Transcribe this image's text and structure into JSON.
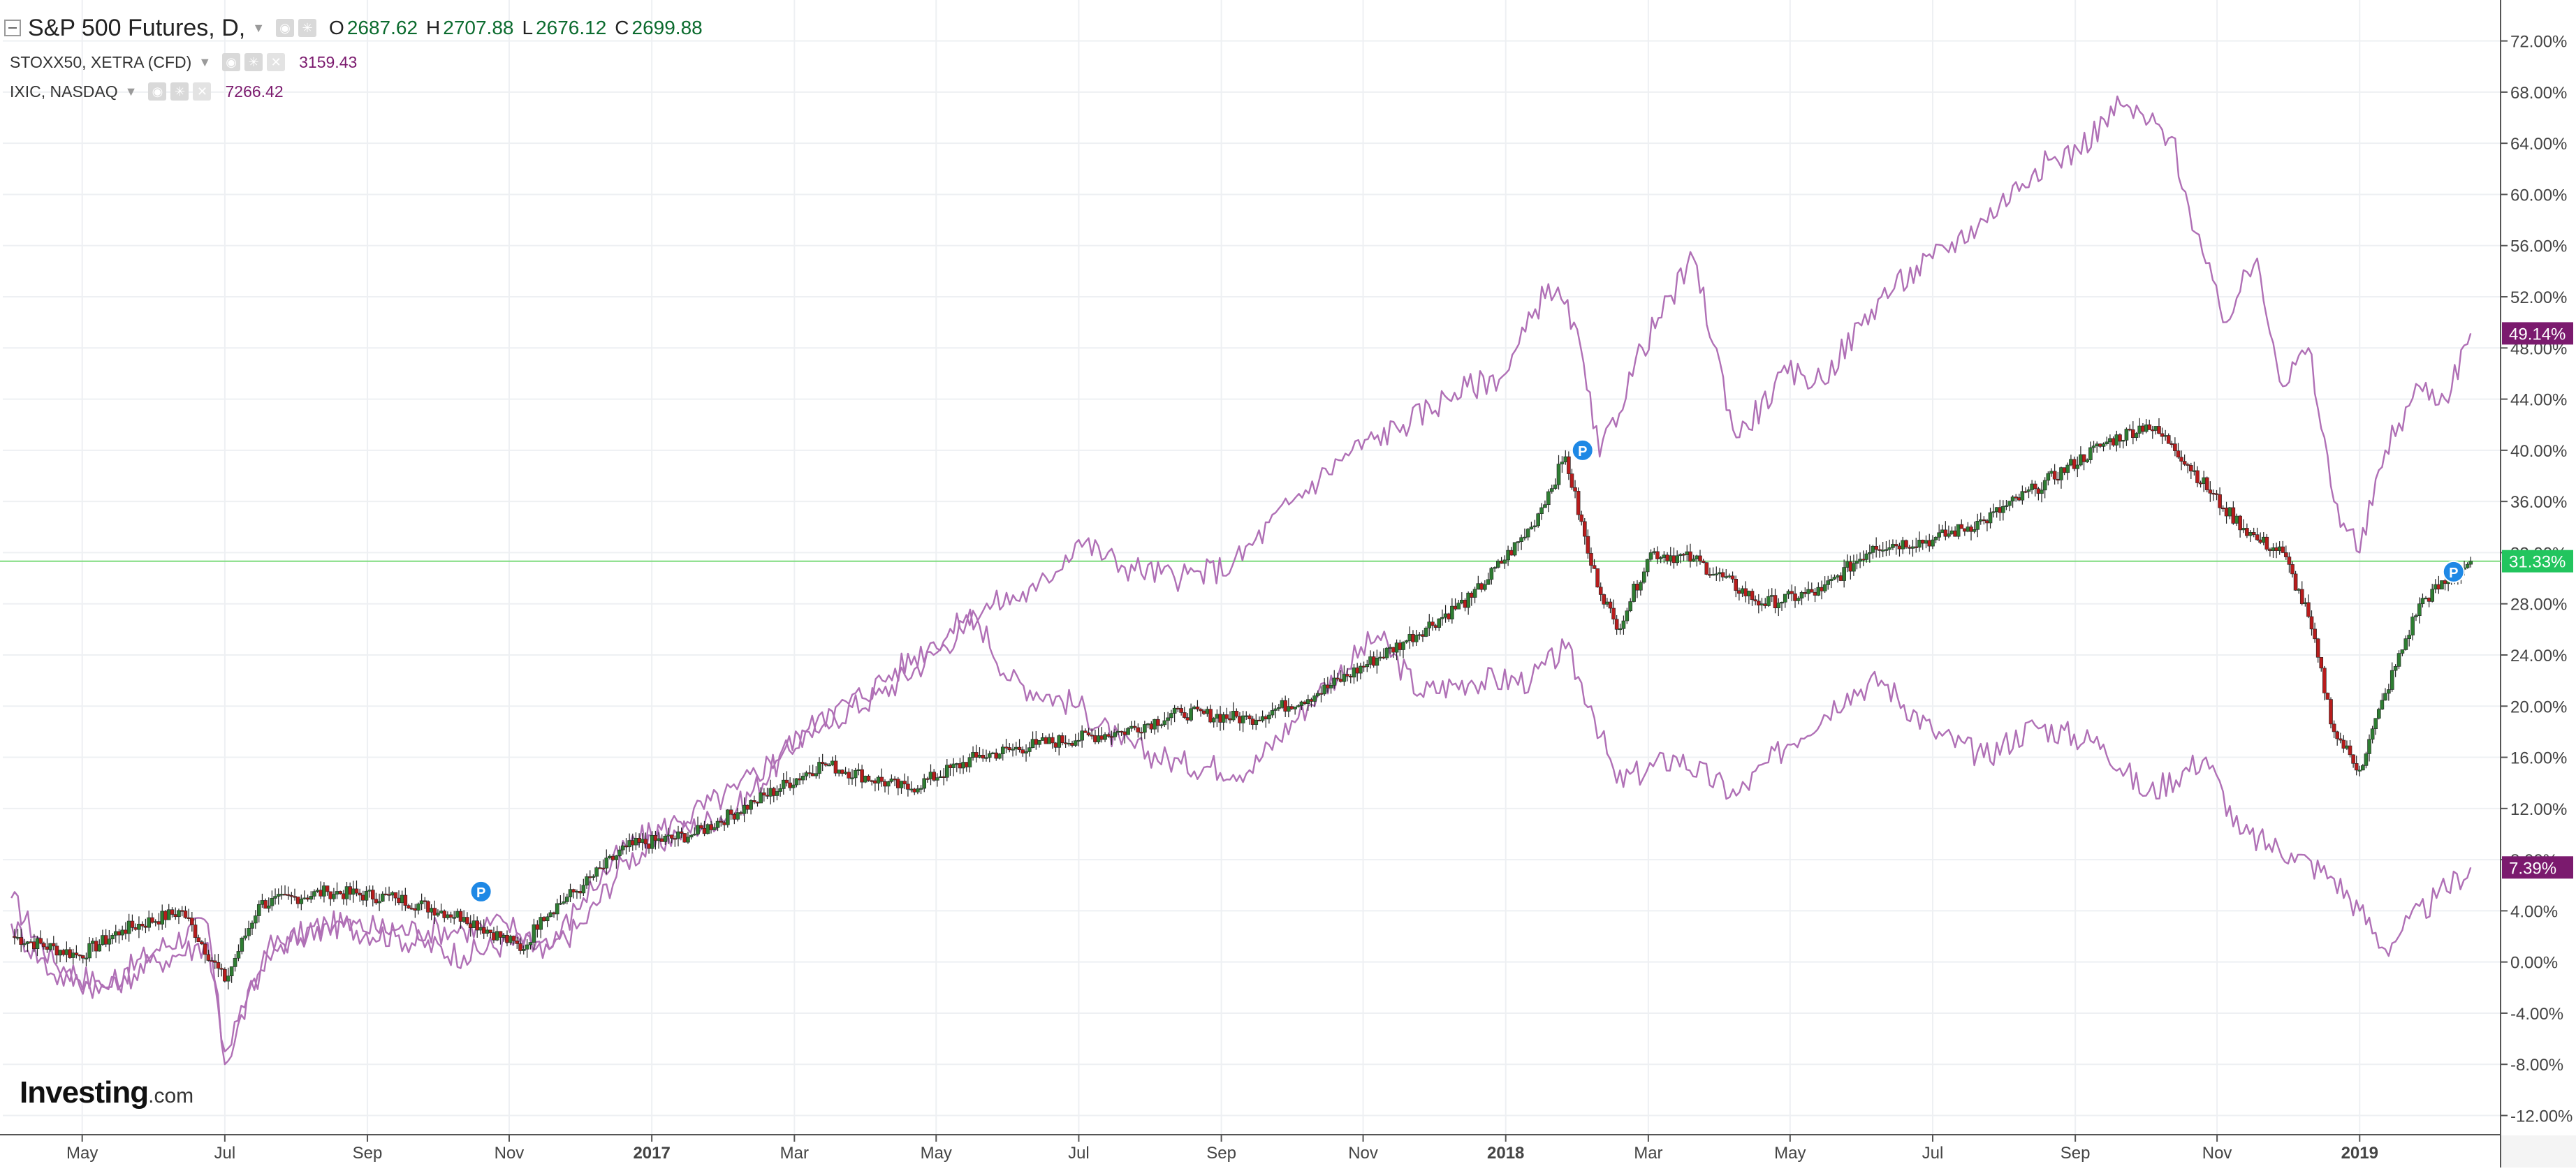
{
  "chart_data": {
    "type": "line",
    "title": "S&P 500 Futures, D,",
    "main_series": {
      "name": "S&P 500 Futures, D,",
      "style": "candlestick",
      "ohlc": {
        "o_label": "O",
        "o": "2687.62",
        "h_label": "H",
        "h": "2707.88",
        "l_label": "L",
        "l": "2676.12",
        "c_label": "C",
        "c": "2699.88"
      },
      "last_label": "31.33%",
      "color": "#2e7d32",
      "down_color": "#b71c1c",
      "values": [
        [
          2016.25,
          2.0
        ],
        [
          2016.33,
          0.5
        ],
        [
          2016.38,
          2.5
        ],
        [
          2016.45,
          4.0
        ],
        [
          2016.5,
          -1.5
        ],
        [
          2016.54,
          4.5
        ],
        [
          2016.62,
          5.5
        ],
        [
          2016.7,
          5.0
        ],
        [
          2016.78,
          3.5
        ],
        [
          2016.85,
          1.0
        ],
        [
          2016.87,
          3.5
        ],
        [
          2016.92,
          6.0
        ],
        [
          2016.97,
          9.0
        ],
        [
          2017.05,
          10.0
        ],
        [
          2017.12,
          12.5
        ],
        [
          2017.2,
          15.5
        ],
        [
          2017.3,
          13.5
        ],
        [
          2017.38,
          16.0
        ],
        [
          2017.45,
          17.0
        ],
        [
          2017.55,
          18.0
        ],
        [
          2017.62,
          19.5
        ],
        [
          2017.7,
          19.0
        ],
        [
          2017.78,
          21.0
        ],
        [
          2017.88,
          25.0
        ],
        [
          2017.96,
          28.5
        ],
        [
          2018.03,
          34.0
        ],
        [
          2018.07,
          39.5
        ],
        [
          2018.1,
          31.0
        ],
        [
          2018.13,
          26.0
        ],
        [
          2018.17,
          32.0
        ],
        [
          2018.22,
          31.5
        ],
        [
          2018.3,
          28.0
        ],
        [
          2018.37,
          29.0
        ],
        [
          2018.43,
          32.5
        ],
        [
          2018.5,
          33.0
        ],
        [
          2018.56,
          34.5
        ],
        [
          2018.62,
          37.0
        ],
        [
          2018.7,
          40.5
        ],
        [
          2018.75,
          42.0
        ],
        [
          2018.78,
          40.5
        ],
        [
          2018.84,
          35.5
        ],
        [
          2018.88,
          33.0
        ],
        [
          2018.91,
          32.0
        ],
        [
          2018.94,
          27.0
        ],
        [
          2018.97,
          18.0
        ],
        [
          2019.0,
          15.0
        ],
        [
          2019.03,
          21.0
        ],
        [
          2019.07,
          28.0
        ],
        [
          2019.13,
          31.33
        ]
      ]
    },
    "series": [
      {
        "name": "STOXX50, XETRA (CFD)",
        "value": "3159.43",
        "last_label": "7.39%",
        "color": "#b070b6",
        "label_color": "#7b1a6e",
        "values": [
          [
            2016.25,
            5.0
          ],
          [
            2016.3,
            0.0
          ],
          [
            2016.36,
            -2.0
          ],
          [
            2016.42,
            1.0
          ],
          [
            2016.48,
            3.0
          ],
          [
            2016.5,
            -8.0
          ],
          [
            2016.55,
            1.0
          ],
          [
            2016.62,
            3.0
          ],
          [
            2016.7,
            2.0
          ],
          [
            2016.78,
            0.5
          ],
          [
            2016.83,
            1.5
          ],
          [
            2016.88,
            1.0
          ],
          [
            2016.92,
            3.0
          ],
          [
            2016.97,
            8.0
          ],
          [
            2017.03,
            10.0
          ],
          [
            2017.1,
            12.0
          ],
          [
            2017.18,
            18.0
          ],
          [
            2017.27,
            21.0
          ],
          [
            2017.33,
            24.0
          ],
          [
            2017.38,
            27.0
          ],
          [
            2017.42,
            22.0
          ],
          [
            2017.5,
            20.0
          ],
          [
            2017.55,
            17.0
          ],
          [
            2017.62,
            15.5
          ],
          [
            2017.7,
            15.0
          ],
          [
            2017.78,
            21.0
          ],
          [
            2017.85,
            25.5
          ],
          [
            2017.9,
            21.0
          ],
          [
            2017.96,
            22.0
          ],
          [
            2018.03,
            22.0
          ],
          [
            2018.07,
            24.5
          ],
          [
            2018.1,
            20.0
          ],
          [
            2018.13,
            14.0
          ],
          [
            2018.2,
            16.0
          ],
          [
            2018.27,
            13.0
          ],
          [
            2018.33,
            17.0
          ],
          [
            2018.4,
            21.0
          ],
          [
            2018.44,
            22.0
          ],
          [
            2018.5,
            18.0
          ],
          [
            2018.56,
            16.0
          ],
          [
            2018.62,
            18.5
          ],
          [
            2018.7,
            17.0
          ],
          [
            2018.75,
            13.0
          ],
          [
            2018.82,
            16.0
          ],
          [
            2018.86,
            10.0
          ],
          [
            2018.92,
            8.5
          ],
          [
            2018.97,
            6.5
          ],
          [
            2019.0,
            4.0
          ],
          [
            2019.03,
            1.0
          ],
          [
            2019.05,
            2.5
          ],
          [
            2019.09,
            5.0
          ],
          [
            2019.13,
            7.39
          ]
        ]
      },
      {
        "name": "IXIC, NASDAQ",
        "value": "7266.42",
        "last_label": "49.14%",
        "color": "#b070b6",
        "label_color": "#7b1a6e",
        "values": [
          [
            2016.25,
            3.0
          ],
          [
            2016.3,
            -1.0
          ],
          [
            2016.36,
            -2.0
          ],
          [
            2016.42,
            0.0
          ],
          [
            2016.48,
            1.5
          ],
          [
            2016.5,
            -7.0
          ],
          [
            2016.55,
            0.5
          ],
          [
            2016.62,
            3.0
          ],
          [
            2016.7,
            2.5
          ],
          [
            2016.78,
            2.5
          ],
          [
            2016.83,
            3.0
          ],
          [
            2016.88,
            1.0
          ],
          [
            2016.92,
            5.0
          ],
          [
            2016.97,
            9.0
          ],
          [
            2017.03,
            11.0
          ],
          [
            2017.1,
            13.5
          ],
          [
            2017.18,
            18.0
          ],
          [
            2017.27,
            22.0
          ],
          [
            2017.33,
            25.0
          ],
          [
            2017.4,
            28.0
          ],
          [
            2017.45,
            29.0
          ],
          [
            2017.5,
            33.0
          ],
          [
            2017.55,
            31.0
          ],
          [
            2017.62,
            30.0
          ],
          [
            2017.68,
            31.0
          ],
          [
            2017.75,
            36.0
          ],
          [
            2017.82,
            40.0
          ],
          [
            2017.88,
            42.0
          ],
          [
            2017.94,
            44.5
          ],
          [
            2018.0,
            46.0
          ],
          [
            2018.05,
            53.0
          ],
          [
            2018.08,
            50.0
          ],
          [
            2018.11,
            39.5
          ],
          [
            2018.16,
            48.0
          ],
          [
            2018.22,
            55.0
          ],
          [
            2018.27,
            41.0
          ],
          [
            2018.33,
            46.0
          ],
          [
            2018.37,
            45.5
          ],
          [
            2018.44,
            52.0
          ],
          [
            2018.5,
            55.0
          ],
          [
            2018.56,
            58.0
          ],
          [
            2018.62,
            62.0
          ],
          [
            2018.67,
            63.5
          ],
          [
            2018.72,
            67.0
          ],
          [
            2018.78,
            64.5
          ],
          [
            2018.8,
            59.0
          ],
          [
            2018.84,
            50.0
          ],
          [
            2018.88,
            55.0
          ],
          [
            2018.91,
            45.0
          ],
          [
            2018.94,
            48.0
          ],
          [
            2018.97,
            36.0
          ],
          [
            2019.0,
            32.0
          ],
          [
            2019.03,
            40.0
          ],
          [
            2019.07,
            45.0
          ],
          [
            2019.1,
            44.0
          ],
          [
            2019.13,
            49.14
          ]
        ]
      }
    ],
    "markers": [
      {
        "label": "P",
        "x": 2016.8,
        "y": 5.5
      },
      {
        "label": "P",
        "x": 2018.09,
        "y": 40.0
      },
      {
        "label": "P",
        "x": 2019.11,
        "y": 30.5
      }
    ],
    "xlim": [
      2016.24,
      2019.165
    ],
    "ylim": [
      -13.5,
      75.2
    ],
    "x_ticks": [
      {
        "value": 2016.333,
        "label": "May",
        "bold": false
      },
      {
        "value": 2016.5,
        "label": "Jul",
        "bold": false
      },
      {
        "value": 2016.667,
        "label": "Sep",
        "bold": false
      },
      {
        "value": 2016.833,
        "label": "Nov",
        "bold": false
      },
      {
        "value": 2017.0,
        "label": "2017",
        "bold": true
      },
      {
        "value": 2017.167,
        "label": "Mar",
        "bold": false
      },
      {
        "value": 2017.333,
        "label": "May",
        "bold": false
      },
      {
        "value": 2017.5,
        "label": "Jul",
        "bold": false
      },
      {
        "value": 2017.667,
        "label": "Sep",
        "bold": false
      },
      {
        "value": 2017.833,
        "label": "Nov",
        "bold": false
      },
      {
        "value": 2018.0,
        "label": "2018",
        "bold": true
      },
      {
        "value": 2018.167,
        "label": "Mar",
        "bold": false
      },
      {
        "value": 2018.333,
        "label": "May",
        "bold": false
      },
      {
        "value": 2018.5,
        "label": "Jul",
        "bold": false
      },
      {
        "value": 2018.667,
        "label": "Sep",
        "bold": false
      },
      {
        "value": 2018.833,
        "label": "Nov",
        "bold": false
      },
      {
        "value": 2019.0,
        "label": "2019",
        "bold": true
      }
    ],
    "y_ticks": [
      {
        "value": -12,
        "label": "-12.00%"
      },
      {
        "value": -8,
        "label": "-8.00%"
      },
      {
        "value": -4,
        "label": "-4.00%"
      },
      {
        "value": 0,
        "label": "0.00%"
      },
      {
        "value": 4,
        "label": "4.00%"
      },
      {
        "value": 8,
        "label": "8.00%"
      },
      {
        "value": 12,
        "label": "12.00%"
      },
      {
        "value": 16,
        "label": "16.00%"
      },
      {
        "value": 20,
        "label": "20.00%"
      },
      {
        "value": 24,
        "label": "24.00%"
      },
      {
        "value": 28,
        "label": "28.00%"
      },
      {
        "value": 32,
        "label": "32.00%"
      },
      {
        "value": 36,
        "label": "36.00%"
      },
      {
        "value": 40,
        "label": "40.00%"
      },
      {
        "value": 44,
        "label": "44.00%"
      },
      {
        "value": 48,
        "label": "48.00%"
      },
      {
        "value": 52,
        "label": "52.00%"
      },
      {
        "value": 56,
        "label": "56.00%"
      },
      {
        "value": 60,
        "label": "60.00%"
      },
      {
        "value": 64,
        "label": "64.00%"
      },
      {
        "value": 68,
        "label": "68.00%"
      },
      {
        "value": 72,
        "label": "72.00%"
      }
    ],
    "grid": true,
    "y_axis_position": "right",
    "horizontal_line": {
      "value": 31.33,
      "color": "#7fdc7f"
    },
    "legend_position": "top-left"
  },
  "branding": {
    "logo_main": "Investing",
    "logo_suffix": ".com"
  }
}
